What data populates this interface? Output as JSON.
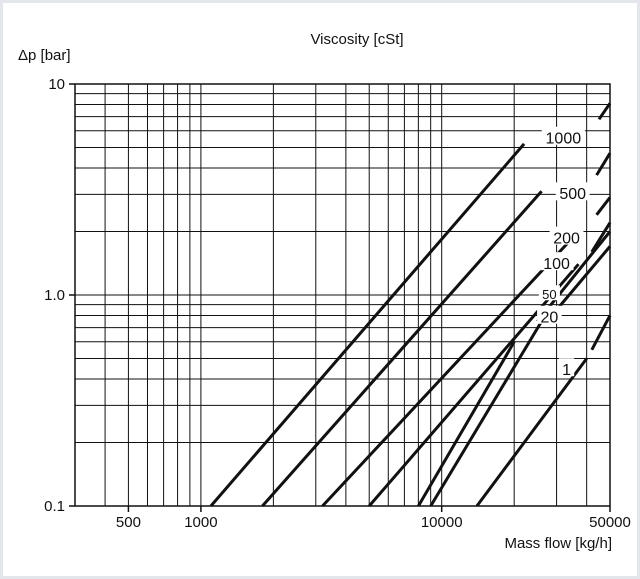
{
  "chart_data": {
    "type": "line",
    "title": "Viscosity [cSt]",
    "xlabel": "Mass flow [kg/h]",
    "ylabel": "Δp [bar]",
    "x_scale": "log",
    "y_scale": "log",
    "xlim": [
      300,
      50000
    ],
    "ylim": [
      0.1,
      10
    ],
    "x_ticks": [
      {
        "value": 500,
        "label": "500"
      },
      {
        "value": 1000,
        "label": "1000"
      },
      {
        "value": 10000,
        "label": "10000"
      },
      {
        "value": 50000,
        "label": "50000"
      }
    ],
    "y_ticks": [
      {
        "value": 0.1,
        "label": "0.1"
      },
      {
        "value": 1,
        "label": "1.0"
      },
      {
        "value": 10,
        "label": "10"
      }
    ],
    "grid": true,
    "series": [
      {
        "name": "1000",
        "points": [
          [
            1100,
            0.1
          ],
          [
            22000,
            5.2
          ]
        ],
        "points2": [
          [
            45000,
            6.8
          ],
          [
            50000,
            8.1
          ]
        ]
      },
      {
        "name": "500",
        "points": [
          [
            1800,
            0.1
          ],
          [
            26000,
            3.1
          ]
        ],
        "points2": [
          [
            44000,
            3.7
          ],
          [
            50000,
            4.7
          ]
        ]
      },
      {
        "name": "200",
        "points": [
          [
            3200,
            0.1
          ],
          [
            37000,
            2.0
          ]
        ],
        "points2": [
          [
            44000,
            2.4
          ],
          [
            50000,
            2.9
          ]
        ]
      },
      {
        "name": "100",
        "points": [
          [
            5000,
            0.1
          ],
          [
            37000,
            1.4
          ]
        ],
        "points2": [
          [
            42000,
            1.6
          ],
          [
            50000,
            2.2
          ]
        ]
      },
      {
        "name": "50",
        "points": [
          [
            8000,
            0.1
          ],
          [
            20000,
            0.6
          ]
        ],
        "points2": [
          [
            25000,
            0.75
          ],
          [
            50000,
            2.0
          ]
        ]
      },
      {
        "name": "20",
        "points": [
          [
            9000,
            0.1
          ],
          [
            26000,
            0.75
          ]
        ],
        "points2": [
          [
            30000,
            0.85
          ],
          [
            50000,
            1.7
          ]
        ]
      },
      {
        "name": "1",
        "points": [
          [
            14000,
            0.1
          ],
          [
            40000,
            0.5
          ]
        ],
        "points2": [
          [
            42000,
            0.55
          ],
          [
            50000,
            0.8
          ]
        ]
      }
    ],
    "curve_labels": [
      {
        "text": "1000",
        "x": 32000,
        "y": 5.5
      },
      {
        "text": "500",
        "x": 35000,
        "y": 3.0
      },
      {
        "text": "200",
        "x": 33000,
        "y": 1.85
      },
      {
        "text": "100",
        "x": 30000,
        "y": 1.4
      },
      {
        "text": "50",
        "x": 28000,
        "y": 1.0
      },
      {
        "text": "20",
        "x": 28000,
        "y": 0.78
      },
      {
        "text": "1",
        "x": 33000,
        "y": 0.44
      }
    ]
  }
}
